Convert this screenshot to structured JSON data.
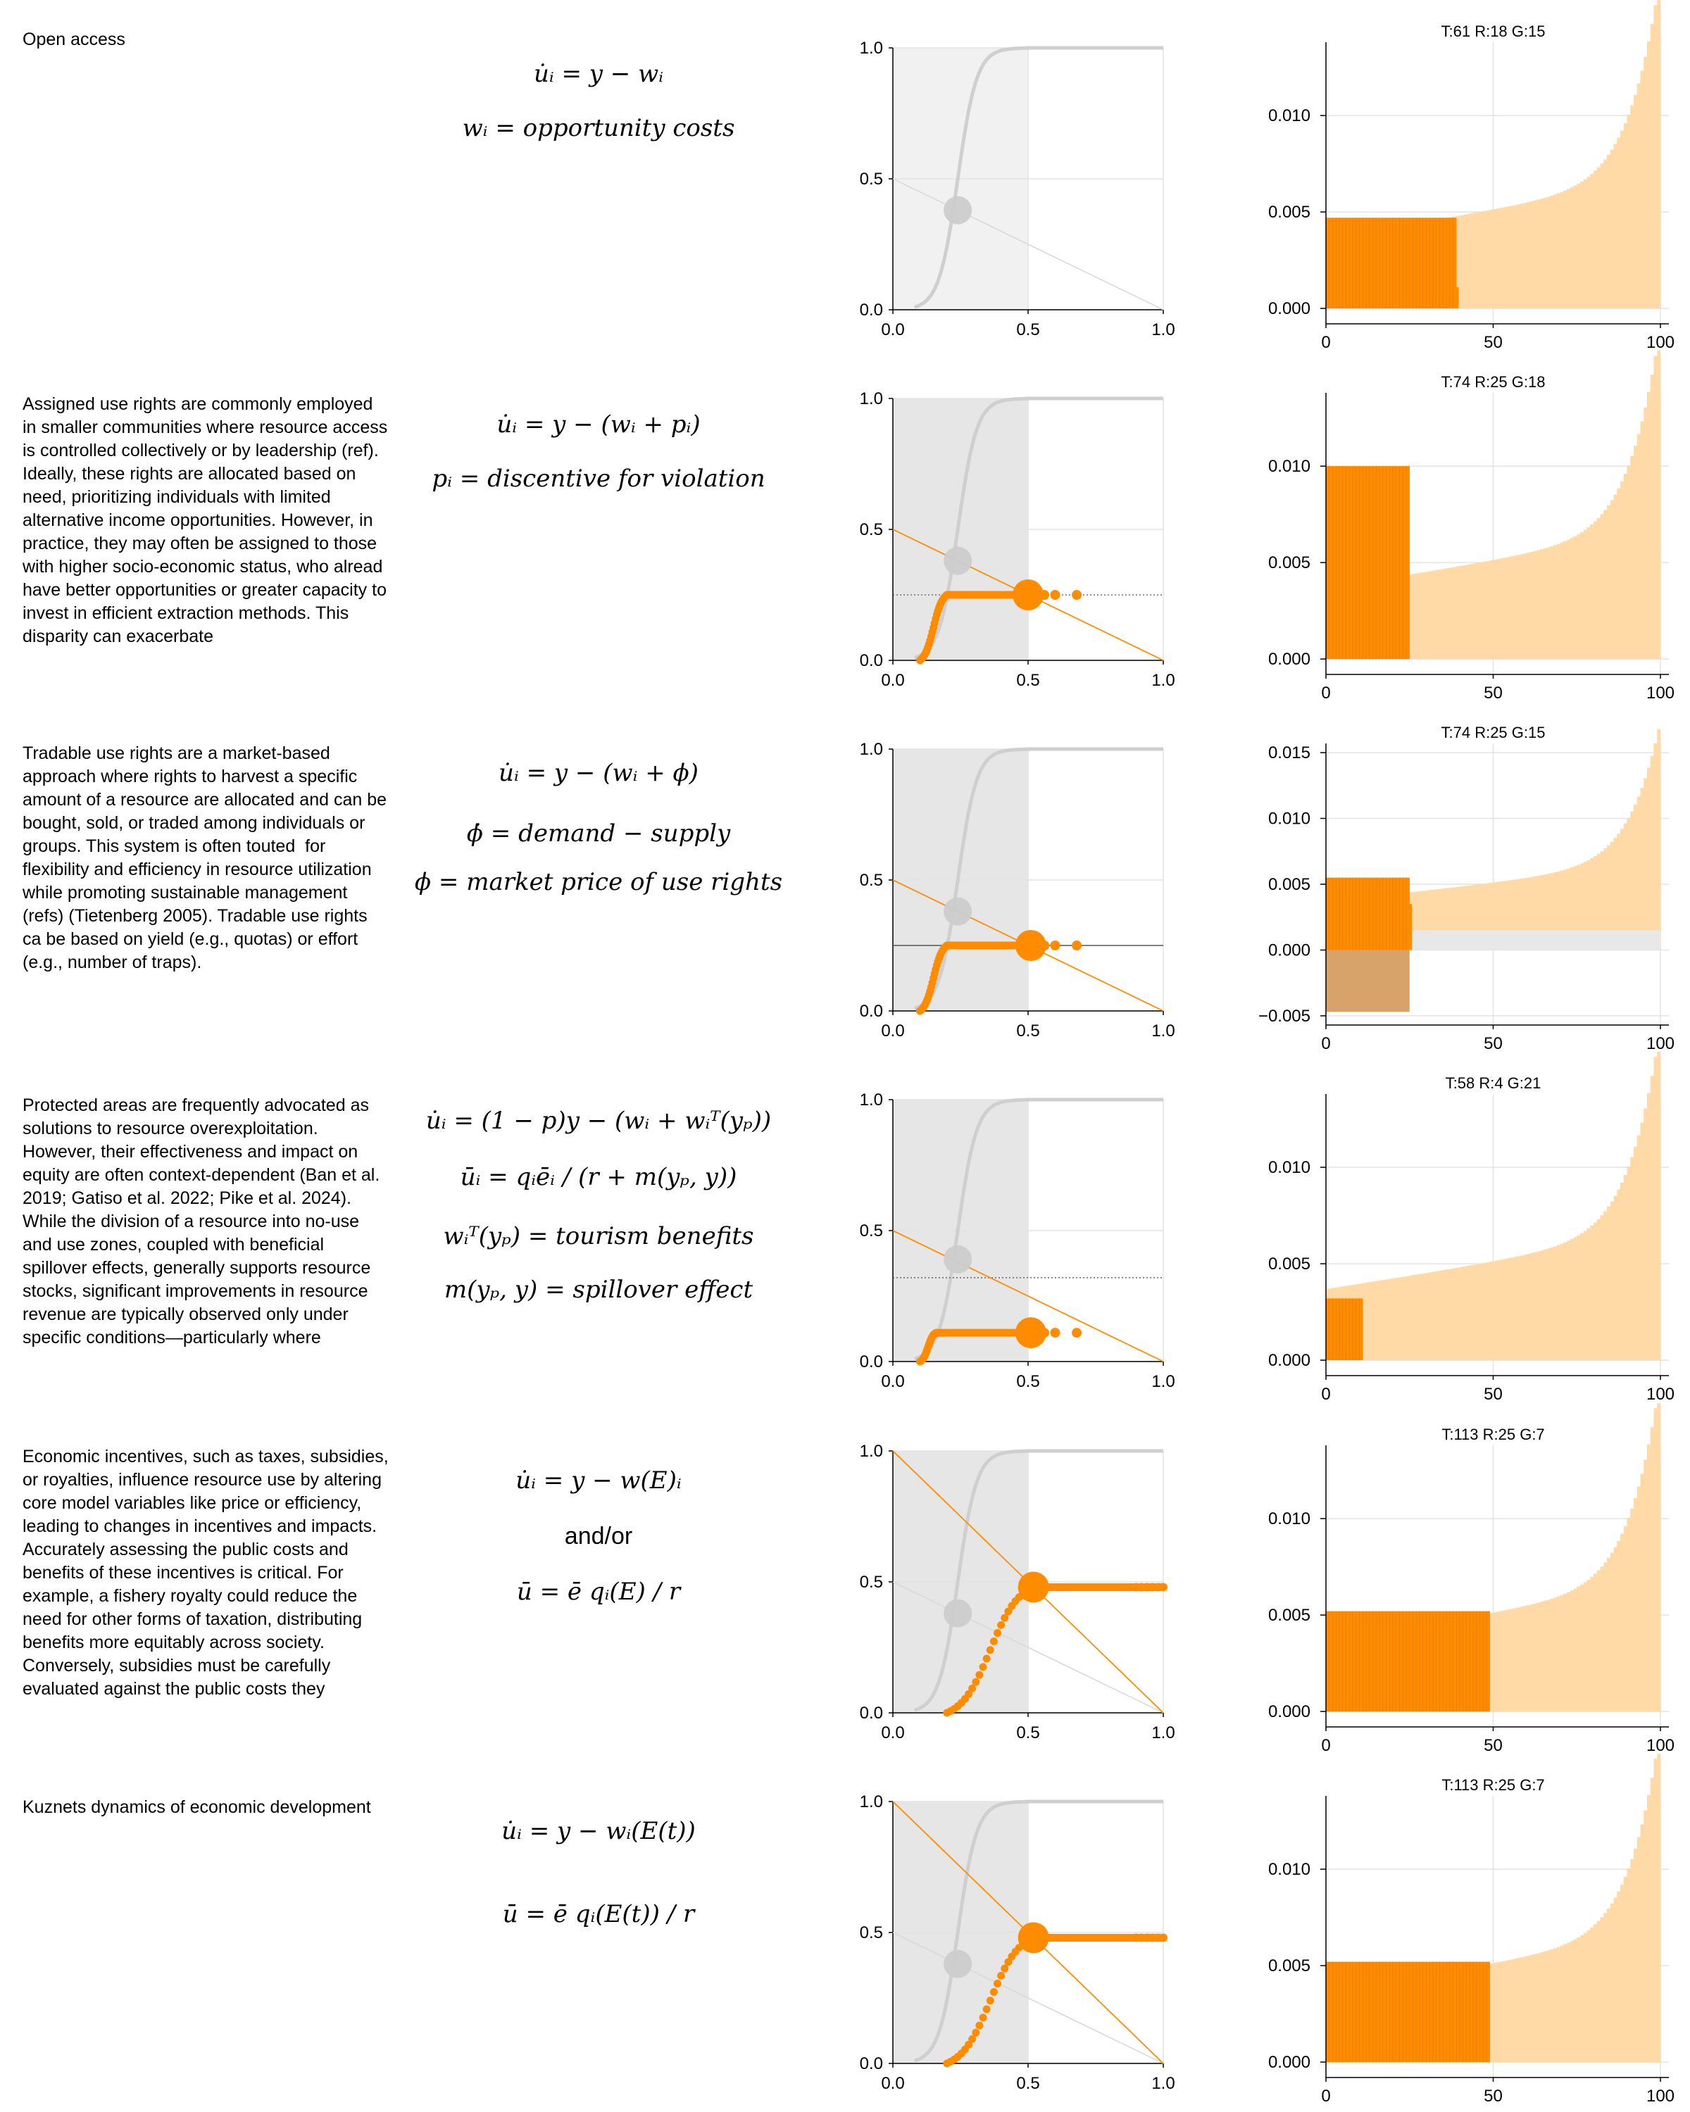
{
  "colors": {
    "accent": "#ff8c00",
    "light_accent": "#ffd9a6",
    "grey_curve": "#cfcfcf",
    "grid": "#e3e3e3"
  },
  "rows": [
    {
      "description": "Open access",
      "equations": [
        "u̇ᵢ = y − wᵢ",
        "wᵢ = opportunity costs"
      ],
      "cdf_shade": "light",
      "hist_title": "T:61 R:18 G:15"
    },
    {
      "description": "Assigned use rights are commonly employed in smaller communities where resource access is controlled collectively or by leadership (ref). Ideally, these rights are allocated based on need, prioritizing individuals with limited alternative income opportunities. However, in practice, they may often be assigned to those with higher socio-economic status, who alread have better opportunities or greater capacity to invest in efficient extraction methods. This disparity can exacerbate",
      "equations": [
        "u̇ᵢ = y − (wᵢ + pᵢ)",
        "pᵢ = discentive for violation"
      ],
      "cdf_shade": "dark",
      "hist_title": "T:74 R:25 G:18"
    },
    {
      "description": "Tradable use rights are a market-based approach where rights to harvest a specific amount of a resource are allocated and can be bought, sold, or traded among individuals or groups. This system is often touted  for flexibility and efficiency in resource utilization while promoting sustainable management (refs) (Tietenberg 2005). Tradable use rights ca be based on yield (e.g., quotas) or effort (e.g., number of traps).",
      "equations": [
        "u̇ᵢ = y − (wᵢ + ϕ)",
        "ϕ̇ = demand − supply",
        "ϕ = market price of use rights"
      ],
      "cdf_shade": "dark",
      "hist_title": "T:74 R:25 G:15"
    },
    {
      "description": "Protected areas are frequently advocated as solutions to resource overexploitation. However, their effectiveness and impact on equity are often context-dependent (Ban et al. 2019; Gatiso et al. 2022; Pike et al. 2024). While the division of a resource into no-use and use zones, coupled with beneficial spillover effects, generally supports resource stocks, significant improvements in resource revenue are typically observed only under specific conditions—particularly where",
      "equations": [
        "u̇ᵢ = (1 − p)y − (wᵢ + wᵢᵀ(yₚ))",
        "ūᵢ = qᵢēᵢ / (r + m(yₚ, y))",
        "wᵢᵀ(yₚ) = tourism benefits",
        "m(yₚ, y) = spillover effect"
      ],
      "cdf_shade": "dark",
      "hist_title": "T:58 R:4 G:21"
    },
    {
      "description": "Economic incentives, such as taxes, subsidies, or royalties, influence resource use by altering core model variables like price or efficiency, leading to changes in incentives and impacts. Accurately assessing the public costs and benefits of these incentives is critical. For example, a fishery royalty could reduce the need for other forms of taxation, distributing benefits more equitably across society. Conversely, subsidies must be carefully evaluated against the public costs they",
      "equations": [
        "u̇ᵢ = y − w(E)ᵢ",
        "and/or",
        "ū = ē qᵢ(E) / r"
      ],
      "cdf_shade": "dark",
      "hist_title": "T:113 R:25 G:7"
    },
    {
      "description": "Kuznets dynamics of economic development",
      "equations": [
        "u̇ᵢ = y − wᵢ(E(t))",
        "ū = ē qᵢ(E(t)) / r"
      ],
      "cdf_shade": "dark",
      "hist_title": "T:113 R:25 G:7"
    }
  ],
  "chart_data": [
    {
      "type": "line",
      "panel": "cdf",
      "xlim": [
        0,
        1
      ],
      "ylim": [
        0,
        1
      ],
      "x_ticks": [
        "0.0",
        "0.5",
        "1.0"
      ],
      "y_ticks": [
        "0.0",
        "0.5",
        "1.0"
      ],
      "rows": [
        {
          "grey_point": [
            0.24,
            0.38
          ],
          "supply_line": [
            [
              0,
              0.5
            ],
            [
              1,
              0
            ]
          ],
          "supply_color": "grey",
          "hline": null,
          "orange": null
        },
        {
          "grey_point": [
            0.24,
            0.38
          ],
          "supply_line": [
            [
              0,
              0.5
            ],
            [
              1,
              0
            ]
          ],
          "supply_color": "orange",
          "hline": {
            "y": 0.25,
            "style": "dotted"
          },
          "orange": {
            "x0": 0.1,
            "x1": 0.2,
            "plateau": 0.25,
            "big": [
              0.5,
              0.25
            ],
            "dots": [
              0.56,
              0.6,
              0.68
            ]
          }
        },
        {
          "grey_point": [
            0.24,
            0.38
          ],
          "supply_line": [
            [
              0,
              0.5
            ],
            [
              1,
              0
            ]
          ],
          "supply_color": "orange",
          "hline": {
            "y": 0.25,
            "style": "solid"
          },
          "orange": {
            "x0": 0.1,
            "x1": 0.2,
            "plateau": 0.25,
            "big": [
              0.51,
              0.25
            ],
            "dots": [
              0.56,
              0.6,
              0.68
            ]
          }
        },
        {
          "grey_point": [
            0.24,
            0.39
          ],
          "supply_line": [
            [
              0,
              0.5
            ],
            [
              1,
              0
            ]
          ],
          "supply_color": "orange",
          "hline": {
            "y": 0.32,
            "style": "dotted"
          },
          "orange": {
            "x0": 0.1,
            "x1": 0.16,
            "plateau": 0.11,
            "big": [
              0.51,
              0.11
            ],
            "dots": [
              0.56,
              0.6,
              0.68
            ]
          }
        },
        {
          "grey_point": [
            0.24,
            0.38
          ],
          "supply_line": [
            [
              0,
              1
            ],
            [
              1,
              0
            ]
          ],
          "supply_color": "orange",
          "hline": null,
          "grey_line": [
            [
              0,
              0.5
            ],
            [
              1,
              0
            ]
          ],
          "orange": {
            "x0": 0.2,
            "x1": 0.52,
            "plateau": 0.48,
            "big": [
              0.52,
              0.48
            ],
            "dots": "fill",
            "end": 1.0
          }
        },
        {
          "grey_point": [
            0.24,
            0.38
          ],
          "supply_line": [
            [
              0,
              1
            ],
            [
              1,
              0
            ]
          ],
          "supply_color": "orange",
          "hline": null,
          "grey_line": [
            [
              0,
              0.5
            ],
            [
              1,
              0
            ]
          ],
          "orange": {
            "x0": 0.2,
            "x1": 0.52,
            "plateau": 0.48,
            "big": [
              0.52,
              0.48
            ],
            "dots": "fill",
            "end": 1.0
          }
        }
      ]
    },
    {
      "type": "bar",
      "panel": "histogram",
      "xlim": [
        0,
        100
      ],
      "x_ticks": [
        "0",
        "50",
        "100"
      ],
      "rows": [
        {
          "ylim": [
            -0.0008,
            0.0138
          ],
          "y_ticks": [
            "0.000",
            "0.005",
            "0.010"
          ],
          "y_tick_values": [
            0,
            0.005,
            0.01
          ],
          "dark_count": 39,
          "dark_value": 0.0047,
          "dark_tail": [
            [
              39,
              0.0011
            ]
          ],
          "negative": null
        },
        {
          "ylim": [
            -0.0008,
            0.0138
          ],
          "y_ticks": [
            "0.000",
            "0.005",
            "0.010"
          ],
          "y_tick_values": [
            0,
            0.005,
            0.01
          ],
          "dark_count": 25,
          "dark_value": 0.01,
          "dark_tail": [],
          "negative": null
        },
        {
          "ylim": [
            -0.0057,
            0.0157
          ],
          "y_ticks": [
            "−0.005",
            "0.000",
            "0.005",
            "0.010",
            "0.015"
          ],
          "y_tick_values": [
            -0.005,
            0,
            0.005,
            0.01,
            0.015
          ],
          "dark_count": 25,
          "dark_value": 0.0055,
          "dark_tail": [
            [
              25,
              0.0035
            ]
          ],
          "negative": {
            "dark_count": 25,
            "dark_value": -0.0047,
            "light_value": 0.0015
          }
        },
        {
          "ylim": [
            -0.0008,
            0.0138
          ],
          "y_ticks": [
            "0.000",
            "0.005",
            "0.010"
          ],
          "y_tick_values": [
            0,
            0.005,
            0.01
          ],
          "dark_count": 11,
          "dark_value": 0.0032,
          "dark_tail": [],
          "negative": null
        },
        {
          "ylim": [
            -0.0008,
            0.0138
          ],
          "y_ticks": [
            "0.000",
            "0.005",
            "0.010"
          ],
          "y_tick_values": [
            0,
            0.005,
            0.01
          ],
          "dark_count": 49,
          "dark_value": 0.0052,
          "dark_tail": [],
          "negative": null
        },
        {
          "ylim": [
            -0.0008,
            0.0138
          ],
          "y_ticks": [
            "0.000",
            "0.005",
            "0.010"
          ],
          "y_tick_values": [
            0,
            0.005,
            0.01
          ],
          "dark_count": 49,
          "dark_value": 0.0052,
          "dark_tail": [],
          "negative": null
        }
      ]
    }
  ]
}
